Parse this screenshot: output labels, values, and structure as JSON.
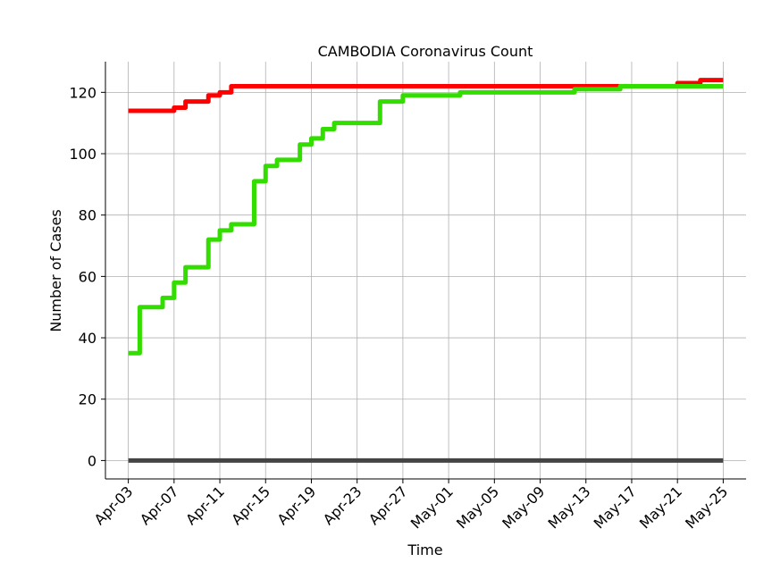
{
  "chart_data": {
    "type": "line",
    "title": "CAMBODIA Coronavirus Count",
    "xlabel": "Time",
    "ylabel": "Number of Cases",
    "ylim": [
      -6,
      130
    ],
    "xlim": [
      "2020-04-01",
      "2020-05-27"
    ],
    "grid": true,
    "x_ticks": [
      "Apr-03",
      "Apr-07",
      "Apr-11",
      "Apr-15",
      "Apr-19",
      "Apr-23",
      "Apr-27",
      "May-01",
      "May-05",
      "May-09",
      "May-13",
      "May-17",
      "May-21",
      "May-25"
    ],
    "y_ticks": [
      0,
      20,
      40,
      60,
      80,
      100,
      120
    ],
    "series": [
      {
        "color": "#ff0000",
        "step": true,
        "points": [
          [
            "2020-04-03",
            114
          ],
          [
            "2020-04-07",
            115
          ],
          [
            "2020-04-08",
            117
          ],
          [
            "2020-04-10",
            119
          ],
          [
            "2020-04-11",
            120
          ],
          [
            "2020-04-12",
            122
          ],
          [
            "2020-05-21",
            123
          ],
          [
            "2020-05-23",
            124
          ],
          [
            "2020-05-25",
            124
          ]
        ]
      },
      {
        "color": "#33dd00",
        "step": true,
        "points": [
          [
            "2020-04-03",
            35
          ],
          [
            "2020-04-04",
            50
          ],
          [
            "2020-04-06",
            53
          ],
          [
            "2020-04-07",
            58
          ],
          [
            "2020-04-08",
            63
          ],
          [
            "2020-04-10",
            72
          ],
          [
            "2020-04-11",
            75
          ],
          [
            "2020-04-12",
            77
          ],
          [
            "2020-04-14",
            91
          ],
          [
            "2020-04-15",
            96
          ],
          [
            "2020-04-16",
            98
          ],
          [
            "2020-04-18",
            103
          ],
          [
            "2020-04-19",
            105
          ],
          [
            "2020-04-20",
            108
          ],
          [
            "2020-04-21",
            110
          ],
          [
            "2020-04-25",
            117
          ],
          [
            "2020-04-27",
            119
          ],
          [
            "2020-05-02",
            120
          ],
          [
            "2020-05-12",
            121
          ],
          [
            "2020-05-16",
            122
          ],
          [
            "2020-05-25",
            122
          ]
        ]
      },
      {
        "color": "#444444",
        "step": true,
        "points": [
          [
            "2020-04-03",
            0
          ],
          [
            "2020-05-25",
            0
          ]
        ]
      }
    ]
  }
}
